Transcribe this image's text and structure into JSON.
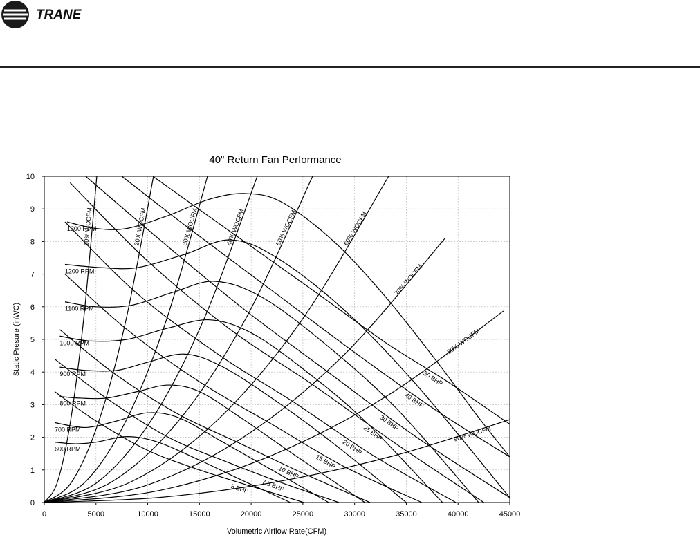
{
  "header": {
    "logo": "TRANE"
  },
  "chart_data": {
    "type": "line",
    "title": "40\" Return Fan Performance",
    "x_label": "Volumetric Airflow Rate(CFM)",
    "y_label": "Static Presure (inWC)",
    "xlim": [
      0,
      45000
    ],
    "ylim": [
      0,
      10
    ],
    "xticks": [
      0,
      5000,
      10000,
      15000,
      20000,
      25000,
      30000,
      35000,
      40000,
      45000
    ],
    "yticks": [
      0,
      1,
      2,
      3,
      4,
      5,
      6,
      7,
      8,
      9,
      10
    ],
    "grid": true,
    "color": "#000000",
    "rpm_curves": [
      {
        "name": "600 RPM",
        "x": [
          1000,
          3000,
          5000,
          8000,
          11000,
          15000,
          19000,
          23800
        ],
        "values": [
          1.85,
          1.8,
          1.85,
          2.02,
          1.85,
          1.3,
          0.7,
          0
        ]
      },
      {
        "name": "700 RPM",
        "x": [
          1000,
          4000,
          7000,
          10000,
          13000,
          17000,
          22000,
          27500
        ],
        "values": [
          2.45,
          2.3,
          2.5,
          2.75,
          2.6,
          1.9,
          1.0,
          0
        ]
      },
      {
        "name": "800 RPM",
        "x": [
          1500,
          3500,
          6000,
          9000,
          12000,
          15000,
          19000,
          24000,
          31000
        ],
        "values": [
          3.25,
          3.2,
          3.2,
          3.4,
          3.6,
          3.4,
          2.6,
          1.5,
          0
        ]
      },
      {
        "name": "900 RPM",
        "x": [
          1500,
          4000,
          7000,
          10000,
          13500,
          17000,
          22000,
          28000,
          35000
        ],
        "values": [
          4.15,
          4.05,
          4.05,
          4.3,
          4.55,
          4.2,
          3.2,
          1.8,
          0
        ]
      },
      {
        "name": "1000 RPM",
        "x": [
          1500,
          4500,
          8000,
          12000,
          16000,
          20000,
          25000,
          31000,
          38500
        ],
        "values": [
          5.1,
          4.95,
          5.0,
          5.35,
          5.6,
          5.2,
          4.1,
          2.5,
          0
        ]
      },
      {
        "name": "1100 RPM",
        "x": [
          2000,
          5000,
          8500,
          12500,
          16500,
          21000,
          27000,
          34000,
          42000
        ],
        "values": [
          6.15,
          6.0,
          6.05,
          6.45,
          6.78,
          6.3,
          4.9,
          2.9,
          0
        ]
      },
      {
        "name": "1200 RPM",
        "x": [
          2000,
          5500,
          9000,
          13500,
          18000,
          22500,
          29000,
          36000,
          45000
        ],
        "values": [
          7.3,
          7.2,
          7.2,
          7.6,
          8.05,
          7.5,
          5.9,
          3.6,
          0.15
        ]
      },
      {
        "name": "1300 RPM",
        "x": [
          2200,
          5000,
          8000,
          12000,
          16000,
          19500,
          23000,
          28000,
          33000,
          38000,
          42000,
          45000
        ],
        "values": [
          8.6,
          8.4,
          8.4,
          8.8,
          9.3,
          9.47,
          9.2,
          8.0,
          6.3,
          4.3,
          2.6,
          1.4
        ]
      }
    ],
    "system_curves": [
      {
        "name": "10% WOCFM",
        "x": [
          0,
          1270,
          2540,
          3810,
          5080
        ],
        "values": [
          0,
          0.625,
          2.5,
          5.625,
          10
        ]
      },
      {
        "name": "20% WOCFM",
        "x": [
          0,
          2640,
          5280,
          7920,
          10560
        ],
        "values": [
          0,
          0.625,
          2.5,
          5.625,
          10
        ]
      },
      {
        "name": "30% WOCFM",
        "x": [
          0,
          3945,
          7890,
          11835,
          15780
        ],
        "values": [
          0,
          0.625,
          2.5,
          5.625,
          10
        ]
      },
      {
        "name": "40% WOCFM",
        "x": [
          0,
          5150,
          10300,
          15440,
          20590
        ],
        "values": [
          0,
          0.625,
          2.5,
          5.625,
          10
        ]
      },
      {
        "name": "50% WOCFM",
        "x": [
          0,
          6485,
          12970,
          19455,
          25940
        ],
        "values": [
          0,
          0.625,
          2.5,
          5.625,
          10
        ]
      },
      {
        "name": "60% WOCFM",
        "x": [
          0,
          8320,
          16645,
          24970,
          33290
        ],
        "values": [
          0,
          0.625,
          2.5,
          5.625,
          10
        ]
      },
      {
        "name": "70% WOCFM",
        "x": [
          0,
          9690,
          19385,
          29080,
          38770
        ],
        "values": [
          0,
          0.507,
          2.03,
          4.56,
          8.11
        ]
      },
      {
        "name": "80% WOCFM",
        "x": [
          0,
          11100,
          22195,
          33290,
          44390
        ],
        "values": [
          0,
          0.367,
          1.47,
          3.3,
          5.87
        ]
      },
      {
        "name": "90% WOCFM",
        "x": [
          0,
          11250,
          22500,
          33750,
          45000
        ],
        "values": [
          0,
          0.159,
          0.635,
          1.43,
          2.54
        ]
      }
    ],
    "bhp_curves": [
      {
        "name": "5 BHP",
        "x": [
          1000,
          5000,
          10000,
          15000,
          20000,
          25100
        ],
        "values": [
          3.4,
          2.5,
          1.6,
          1.0,
          0.5,
          0
        ]
      },
      {
        "name": "7.5 BHP",
        "x": [
          1000,
          6000,
          12000,
          18000,
          23000,
          28500
        ],
        "values": [
          4.4,
          3.2,
          2.0,
          1.2,
          0.6,
          0
        ]
      },
      {
        "name": "10 BHP",
        "x": [
          1500,
          7000,
          13000,
          19000,
          25000,
          31500
        ],
        "values": [
          5.3,
          3.9,
          2.7,
          1.8,
          0.9,
          0
        ]
      },
      {
        "name": "15 BHP",
        "x": [
          2000,
          8000,
          15000,
          22000,
          29000,
          36500
        ],
        "values": [
          7.0,
          5.3,
          3.7,
          2.4,
          1.1,
          0
        ]
      },
      {
        "name": "20 BHP",
        "x": [
          2000,
          9000,
          17000,
          24000,
          32000,
          39800
        ],
        "values": [
          8.6,
          6.4,
          4.5,
          3.1,
          1.4,
          0
        ]
      },
      {
        "name": "25 BHP",
        "x": [
          2500,
          10000,
          18000,
          26000,
          34000,
          42500
        ],
        "values": [
          9.8,
          7.4,
          5.3,
          3.6,
          1.8,
          0
        ]
      },
      {
        "name": "30 BHP",
        "x": [
          4000,
          11000,
          19000,
          27000,
          36000,
          45000
        ],
        "values": [
          10,
          8.1,
          6.0,
          4.1,
          2.0,
          0.15
        ]
      },
      {
        "name": "40 BHP",
        "x": [
          7500,
          14000,
          22000,
          30000,
          38000,
          45000
        ],
        "values": [
          10,
          8.4,
          6.5,
          4.6,
          2.8,
          1.4
        ]
      },
      {
        "name": "50 BHP",
        "x": [
          10500,
          18000,
          26000,
          33000,
          39000,
          45000
        ],
        "values": [
          10,
          8.3,
          6.5,
          4.9,
          3.7,
          2.4
        ]
      }
    ]
  }
}
